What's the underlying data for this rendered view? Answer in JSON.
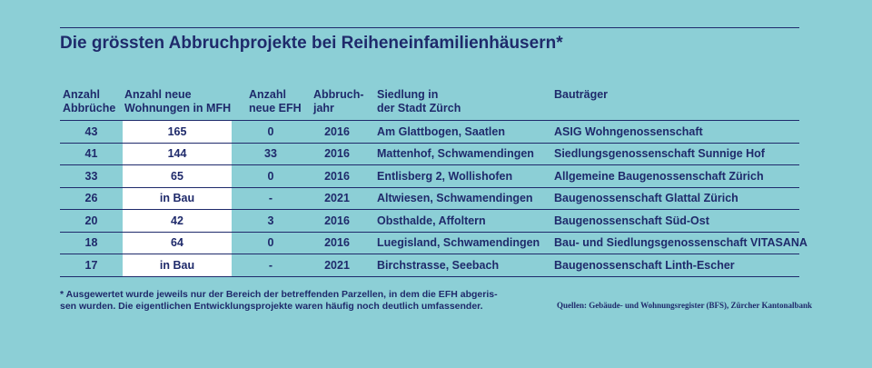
{
  "title": "Die grössten Abbruchprojekte bei Reiheneinfamilienhäusern*",
  "columns": [
    "Anzahl\nAbbrüche",
    "Anzahl neue\nWohnungen in MFH",
    "Anzahl\nneue EFH",
    "Abbruch-\njahr",
    "Siedlung in\nder Stadt Zürch",
    "Bauträger"
  ],
  "rows": [
    [
      "43",
      "165",
      "0",
      "2016",
      "Am Glattbogen, Saatlen",
      "ASIG Wohngenossenschaft"
    ],
    [
      "41",
      "144",
      "33",
      "2016",
      "Mattenhof, Schwamendingen",
      "Siedlungsgenossenschaft Sunnige Hof"
    ],
    [
      "33",
      "65",
      "0",
      "2016",
      "Entlisberg 2, Wollishofen",
      "Allgemeine Baugenossenschaft Zürich"
    ],
    [
      "26",
      "in Bau",
      "-",
      "2021",
      "Altwiesen, Schwamendingen",
      "Baugenossenschaft Glattal Zürich"
    ],
    [
      "20",
      "42",
      "3",
      "2016",
      "Obsthalde, Affoltern",
      "Baugenossenschaft Süd-Ost"
    ],
    [
      "18",
      "64",
      "0",
      "2016",
      "Luegisland, Schwamendingen",
      "Bau- und Siedlungsgenossenschaft VITASANA"
    ],
    [
      "17",
      "in Bau",
      "-",
      "2021",
      "Birchstrasse, Seebach",
      "Baugenossenschaft Linth-Escher"
    ]
  ],
  "footnote": "* Ausgewertet wurde jeweils nur der Bereich der betreffenden Parzellen, in dem die EFH abgeris-\nsen wurden. Die eigentlichen Entwicklungsprojekte waren häufig noch deutlich umfassender.",
  "source": "Quellen: Gebäude- und Wohnungsregister (BFS), Zürcher Kantonalbank",
  "colors": {
    "background": "#8ccfd6",
    "text": "#1f2a6b",
    "highlight_column": "#ffffff"
  }
}
